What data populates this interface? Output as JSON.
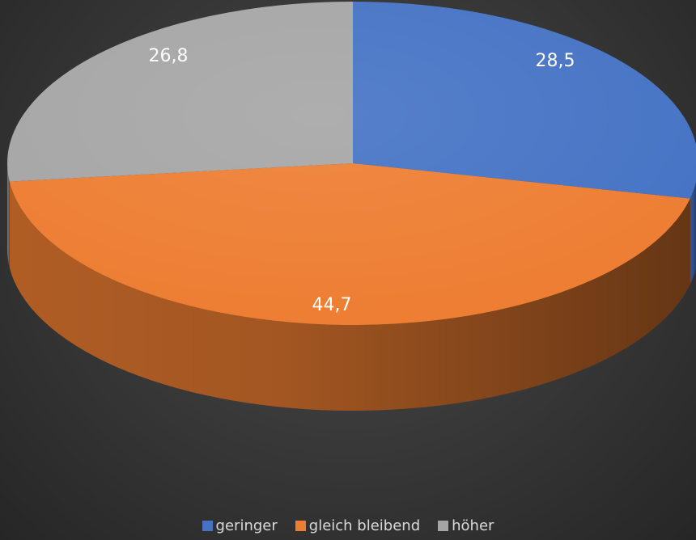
{
  "chart_data": {
    "type": "pie",
    "style": "3d",
    "categories": [
      "geringer",
      "gleich bleibend",
      "höher"
    ],
    "values": [
      28.5,
      44.7,
      26.8
    ],
    "value_labels": [
      "28,5",
      "44,7",
      "26,8"
    ],
    "colors": [
      "#4472c4",
      "#ed7d31",
      "#a5a5a5"
    ],
    "title": "",
    "legend": "bottom-center"
  }
}
